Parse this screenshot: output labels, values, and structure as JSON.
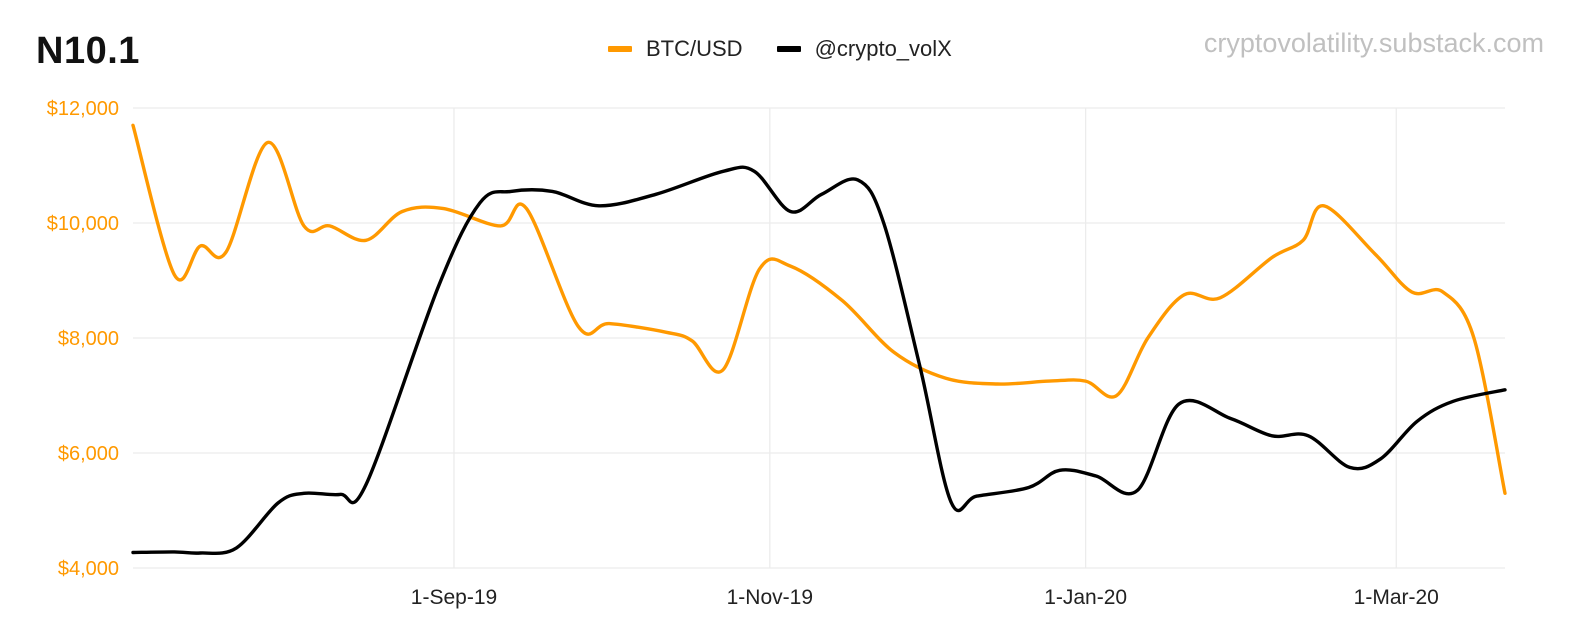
{
  "title": "N10.1",
  "watermark": "cryptovolatility.substack.com",
  "chart_data": {
    "type": "line",
    "x_start_label": "2019-07-01",
    "x_end_label": "2020-03-22",
    "xticks": [
      {
        "date": "2019-09-01",
        "label": "1-Sep-19"
      },
      {
        "date": "2019-11-01",
        "label": "1-Nov-19"
      },
      {
        "date": "2020-01-01",
        "label": "1-Jan-20"
      },
      {
        "date": "2020-03-01",
        "label": "1-Mar-20"
      }
    ],
    "ylim": [
      4000,
      12000
    ],
    "yticks": [
      {
        "value": 12000,
        "label": "$12,000"
      },
      {
        "value": 10000,
        "label": "$10,000"
      },
      {
        "value": 8000,
        "label": "$8,000"
      },
      {
        "value": 6000,
        "label": "$6,000"
      },
      {
        "value": 4000,
        "label": "$4,000"
      }
    ],
    "grid": true,
    "legend_position": "top-center",
    "series": [
      {
        "name": "BTC/USD",
        "color": "#ff9900",
        "points": [
          [
            "2019-07-01",
            11700
          ],
          [
            "2019-07-09",
            9100
          ],
          [
            "2019-07-14",
            9600
          ],
          [
            "2019-07-19",
            9500
          ],
          [
            "2019-07-27",
            11400
          ],
          [
            "2019-08-03",
            9950
          ],
          [
            "2019-08-08",
            9950
          ],
          [
            "2019-08-15",
            9700
          ],
          [
            "2019-08-22",
            10200
          ],
          [
            "2019-08-30",
            10250
          ],
          [
            "2019-09-10",
            9950
          ],
          [
            "2019-09-15",
            10250
          ],
          [
            "2019-09-25",
            8200
          ],
          [
            "2019-10-01",
            8250
          ],
          [
            "2019-10-12",
            8100
          ],
          [
            "2019-10-17",
            7950
          ],
          [
            "2019-10-23",
            7450
          ],
          [
            "2019-10-30",
            9200
          ],
          [
            "2019-11-05",
            9250
          ],
          [
            "2019-11-15",
            8650
          ],
          [
            "2019-11-25",
            7750
          ],
          [
            "2019-12-05",
            7300
          ],
          [
            "2019-12-15",
            7200
          ],
          [
            "2019-12-25",
            7250
          ],
          [
            "2020-01-01",
            7250
          ],
          [
            "2020-01-07",
            7000
          ],
          [
            "2020-01-13",
            8000
          ],
          [
            "2020-01-20",
            8750
          ],
          [
            "2020-01-27",
            8700
          ],
          [
            "2020-02-06",
            9400
          ],
          [
            "2020-02-12",
            9700
          ],
          [
            "2020-02-16",
            10300
          ],
          [
            "2020-02-26",
            9450
          ],
          [
            "2020-03-04",
            8800
          ],
          [
            "2020-03-10",
            8800
          ],
          [
            "2020-03-16",
            8000
          ],
          [
            "2020-03-22",
            5300
          ]
        ]
      },
      {
        "name": "@crypto_volX",
        "color": "#000000",
        "points": [
          [
            "2019-07-01",
            4270
          ],
          [
            "2019-07-09",
            4280
          ],
          [
            "2019-07-14",
            4260
          ],
          [
            "2019-07-21",
            4350
          ],
          [
            "2019-07-29",
            5130
          ],
          [
            "2019-08-03",
            5300
          ],
          [
            "2019-08-10",
            5280
          ],
          [
            "2019-08-15",
            5450
          ],
          [
            "2019-08-29",
            8900
          ],
          [
            "2019-09-06",
            10350
          ],
          [
            "2019-09-12",
            10550
          ],
          [
            "2019-09-20",
            10550
          ],
          [
            "2019-09-29",
            10300
          ],
          [
            "2019-10-10",
            10500
          ],
          [
            "2019-10-23",
            10900
          ],
          [
            "2019-10-29",
            10900
          ],
          [
            "2019-11-05",
            10200
          ],
          [
            "2019-11-11",
            10500
          ],
          [
            "2019-11-18",
            10750
          ],
          [
            "2019-11-23",
            10000
          ],
          [
            "2019-11-30",
            7500
          ],
          [
            "2019-12-06",
            5150
          ],
          [
            "2019-12-11",
            5250
          ],
          [
            "2019-12-21",
            5400
          ],
          [
            "2019-12-27",
            5700
          ],
          [
            "2020-01-03",
            5600
          ],
          [
            "2020-01-11",
            5350
          ],
          [
            "2020-01-19",
            6850
          ],
          [
            "2020-01-29",
            6600
          ],
          [
            "2020-02-06",
            6300
          ],
          [
            "2020-02-13",
            6300
          ],
          [
            "2020-02-21",
            5750
          ],
          [
            "2020-02-27",
            5900
          ],
          [
            "2020-03-05",
            6550
          ],
          [
            "2020-03-12",
            6900
          ],
          [
            "2020-03-22",
            7100
          ]
        ]
      }
    ]
  }
}
